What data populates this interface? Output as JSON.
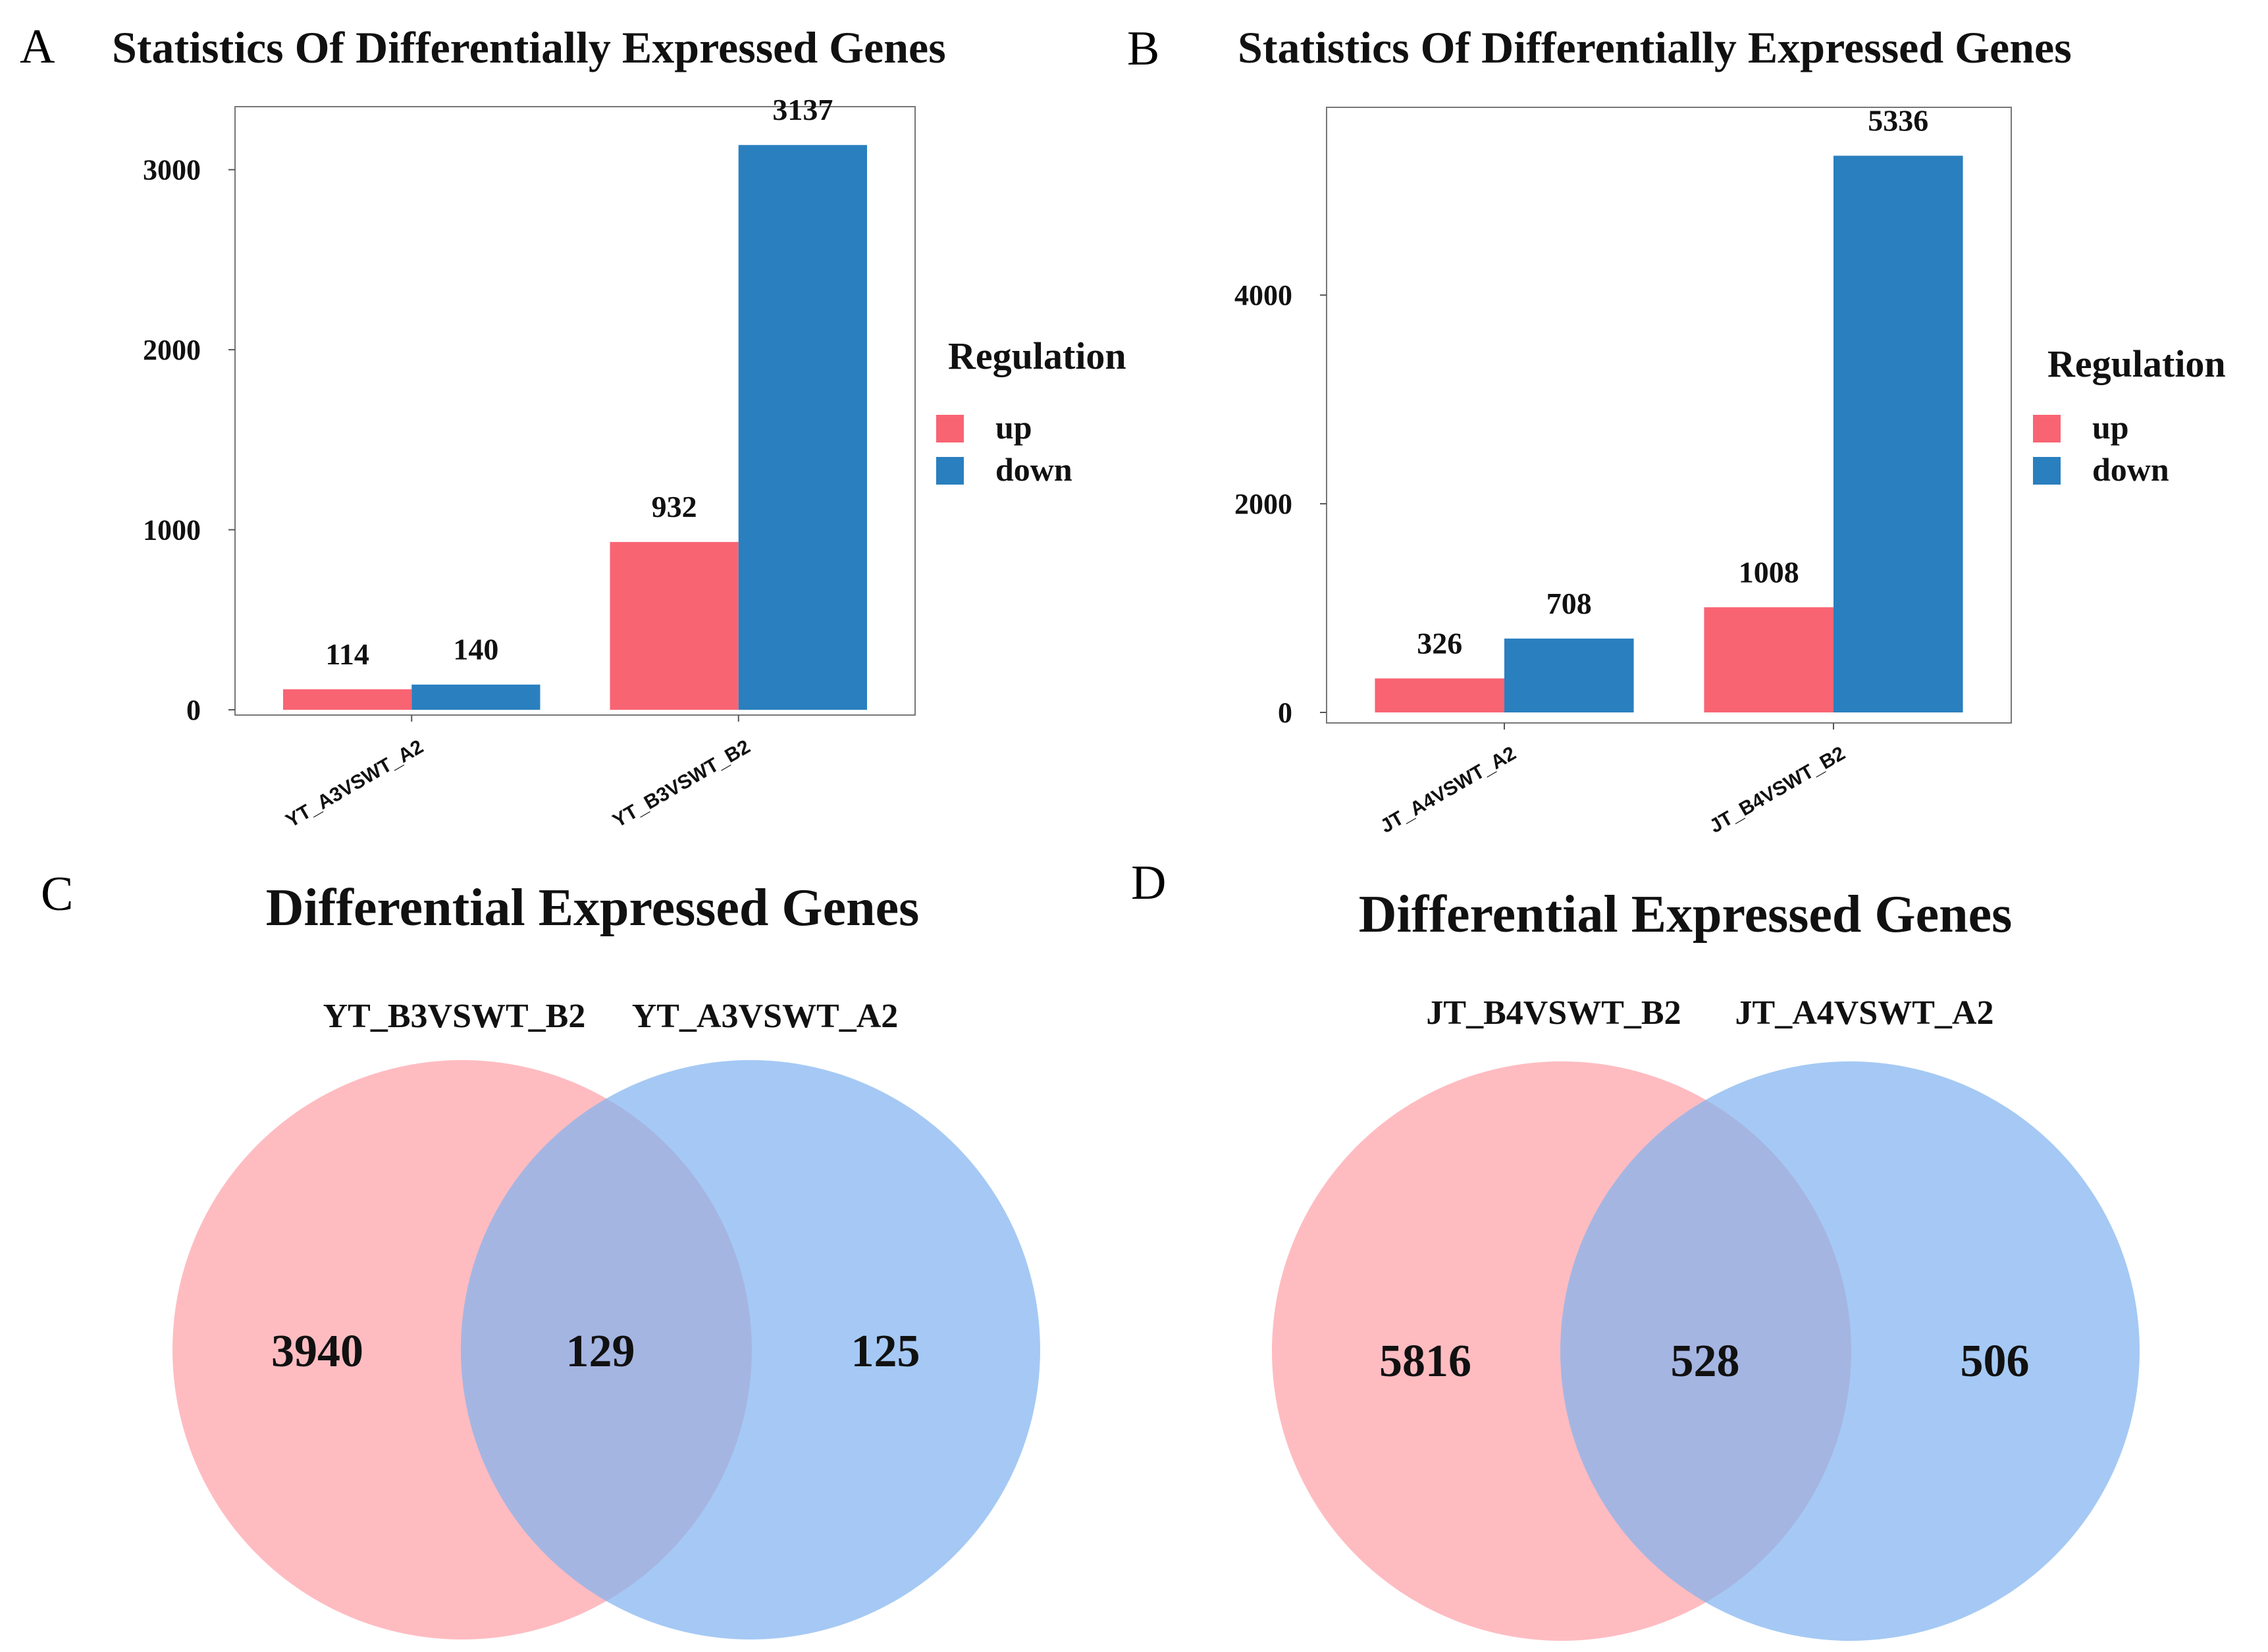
{
  "panels": {
    "a": {
      "letter": "A"
    },
    "b": {
      "letter": "B"
    },
    "c": {
      "letter": "C"
    },
    "d": {
      "letter": "D"
    }
  },
  "colors": {
    "up": "#f96473",
    "down": "#2a7fbf",
    "venn_left": "#fda0a6",
    "venn_right": "#7fb2f0"
  },
  "chart_data": [
    {
      "type": "bar",
      "title": "Statistics Of Differentially Expressed Genes",
      "categories": [
        "YT_A3VSWT_A2",
        "YT_B3VSWT_B2"
      ],
      "series": [
        {
          "name": "up",
          "values": [
            114,
            932
          ]
        },
        {
          "name": "down",
          "values": [
            140,
            3137
          ]
        }
      ],
      "ylim": [
        0,
        3350
      ],
      "yticks": [
        0,
        1000,
        2000,
        3000
      ],
      "legend": {
        "title": "Regulation",
        "labels": [
          "up",
          "down"
        ],
        "position": "right"
      },
      "xlabel": "",
      "ylabel": ""
    },
    {
      "type": "bar",
      "title": "Statistics Of Differentially Expressed Genes",
      "categories": [
        "JT_A4VSWT_A2",
        "JT_B4VSWT_B2"
      ],
      "series": [
        {
          "name": "up",
          "values": [
            326,
            1008
          ]
        },
        {
          "name": "down",
          "values": [
            708,
            5336
          ]
        }
      ],
      "ylim": [
        0,
        5800
      ],
      "yticks": [
        0,
        2000,
        4000
      ],
      "legend": {
        "title": "Regulation",
        "labels": [
          "up",
          "down"
        ],
        "position": "right"
      },
      "xlabel": "",
      "ylabel": ""
    }
  ],
  "venn": [
    {
      "title": "Differential Expressed Genes",
      "set_labels": [
        "YT_B3VSWT_B2",
        "YT_A3VSWT_A2"
      ],
      "counts": {
        "left_only": "3940",
        "both": "129",
        "right_only": "125"
      }
    },
    {
      "title": "Differential Expressed Genes",
      "set_labels": [
        "JT_B4VSWT_B2",
        "JT_A4VSWT_A2"
      ],
      "counts": {
        "left_only": "5816",
        "both": "528",
        "right_only": "506"
      }
    }
  ]
}
